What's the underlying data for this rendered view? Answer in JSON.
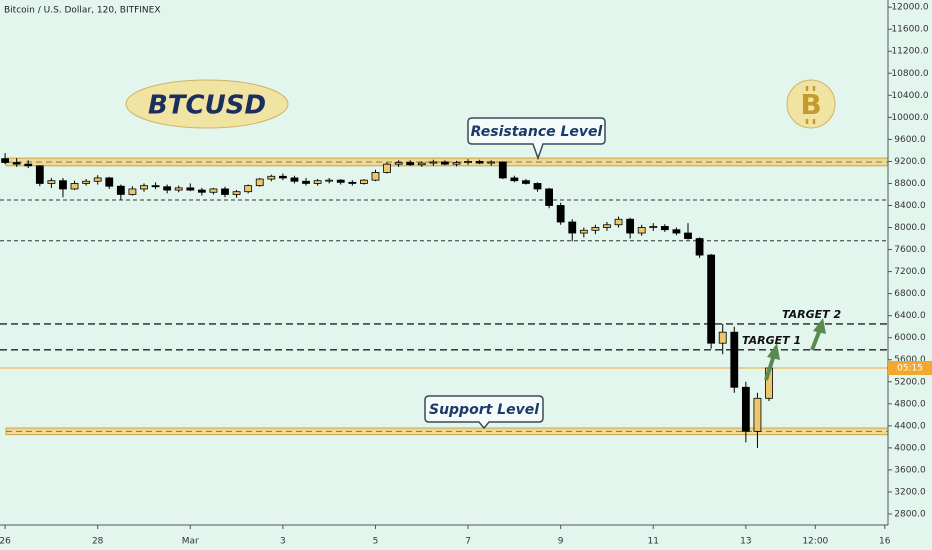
{
  "chart_data": {
    "type": "candlestick",
    "title": "Bitcoin / U.S. Dollar, 120, BITFINEX",
    "x": [
      0,
      0.25,
      0.5,
      0.75,
      1,
      1.25,
      1.5,
      1.75,
      2,
      2.25,
      2.5,
      2.75,
      3,
      3.25,
      3.5,
      3.75,
      4,
      4.25,
      4.5,
      4.75,
      5,
      5.25,
      5.5,
      5.75,
      6,
      6.25,
      6.5,
      6.75,
      7,
      7.25,
      7.5,
      7.75,
      8,
      8.25,
      8.5,
      8.75,
      9,
      9.25,
      9.5,
      9.75,
      10,
      10.25,
      10.5,
      10.75,
      11,
      11.25,
      11.5,
      11.75,
      12,
      12.25,
      12.5,
      12.75,
      13,
      13.25,
      13.5,
      13.75,
      14,
      14.25,
      14.5,
      14.75,
      15,
      15.25,
      15.5,
      15.75,
      16,
      16.25,
      16.5
    ],
    "open": [
      9250,
      9180,
      9150,
      9120,
      8800,
      8850,
      8700,
      8800,
      8840,
      8900,
      8750,
      8600,
      8700,
      8760,
      8740,
      8680,
      8720,
      8680,
      8640,
      8700,
      8600,
      8650,
      8760,
      8880,
      8930,
      8900,
      8840,
      8800,
      8850,
      8860,
      8820,
      8800,
      8860,
      9000,
      9150,
      9180,
      9140,
      9170,
      9190,
      9150,
      9180,
      9200,
      9170,
      9190,
      8900,
      8850,
      8800,
      8700,
      8400,
      8100,
      7900,
      7950,
      8000,
      8050,
      8150,
      7900,
      8000,
      8020,
      7960,
      7900,
      7800,
      7500,
      5900,
      6100,
      5100,
      4300,
      4900
    ],
    "high": [
      9350,
      9260,
      9220,
      9130,
      8900,
      8900,
      8850,
      8880,
      8950,
      8920,
      8780,
      8750,
      8800,
      8820,
      8780,
      8760,
      8800,
      8720,
      8720,
      8740,
      8680,
      8780,
      8900,
      8960,
      8980,
      8940,
      8900,
      8880,
      8900,
      8880,
      8860,
      8880,
      9050,
      9180,
      9220,
      9220,
      9200,
      9230,
      9220,
      9210,
      9240,
      9230,
      9220,
      9200,
      8940,
      8880,
      8820,
      8720,
      8450,
      8150,
      8000,
      8050,
      8100,
      8200,
      8180,
      8050,
      8080,
      8060,
      8000,
      8080,
      7820,
      7520,
      6250,
      6200,
      5200,
      5000,
      5400
    ],
    "low": [
      9150,
      9100,
      9080,
      8750,
      8720,
      8550,
      8680,
      8760,
      8780,
      8700,
      8500,
      8580,
      8650,
      8700,
      8620,
      8640,
      8660,
      8580,
      8600,
      8550,
      8540,
      8620,
      8740,
      8840,
      8860,
      8800,
      8760,
      8760,
      8800,
      8780,
      8760,
      8780,
      8840,
      8980,
      9100,
      9120,
      9100,
      9120,
      9130,
      9110,
      9140,
      9150,
      9120,
      8880,
      8820,
      8780,
      8650,
      8350,
      8050,
      7750,
      7820,
      7880,
      7940,
      8000,
      7800,
      7850,
      7940,
      7920,
      7860,
      7780,
      7450,
      5800,
      5700,
      5000,
      4100,
      4000,
      4850
    ],
    "close": [
      9180,
      9150,
      9120,
      8800,
      8850,
      8700,
      8800,
      8840,
      8900,
      8750,
      8600,
      8700,
      8760,
      8740,
      8680,
      8720,
      8680,
      8640,
      8700,
      8600,
      8650,
      8760,
      8880,
      8930,
      8900,
      8840,
      8800,
      8850,
      8860,
      8820,
      8800,
      8860,
      9000,
      9150,
      9180,
      9140,
      9170,
      9190,
      9150,
      9180,
      9200,
      9170,
      9190,
      8900,
      8850,
      8800,
      8700,
      8400,
      8100,
      7900,
      7950,
      8000,
      8050,
      8150,
      7900,
      8000,
      8020,
      7960,
      7900,
      7800,
      7500,
      5900,
      6100,
      5100,
      4300,
      4900,
      5450
    ],
    "up_color": "#ecc86c",
    "down_color": "#000000",
    "xlim": [
      -0.11,
      19.07
    ],
    "xticks": [
      {
        "value": 0,
        "label": "26"
      },
      {
        "value": 2,
        "label": "28"
      },
      {
        "value": 4,
        "label": "Mar"
      },
      {
        "value": 6,
        "label": "3"
      },
      {
        "value": 8,
        "label": "5"
      },
      {
        "value": 10,
        "label": "7"
      },
      {
        "value": 12,
        "label": "9"
      },
      {
        "value": 14,
        "label": "11"
      },
      {
        "value": 16,
        "label": "13"
      },
      {
        "value": 17.5,
        "label": "12:00"
      },
      {
        "value": 19,
        "label": "16"
      }
    ],
    "ylim": [
      2600,
      12130
    ],
    "yticks": [
      {
        "value": 12000,
        "label": "12000.0"
      },
      {
        "value": 11600,
        "label": "11600.0"
      },
      {
        "value": 11200,
        "label": "11200.0"
      },
      {
        "value": 10800,
        "label": "10800.0"
      },
      {
        "value": 10400,
        "label": "10400.0"
      },
      {
        "value": 10000,
        "label": "10000.0"
      },
      {
        "value": 9600,
        "label": "9600.0"
      },
      {
        "value": 9200,
        "label": "9200.0"
      },
      {
        "value": 8800,
        "label": "8800.0"
      },
      {
        "value": 8400,
        "label": "8400.0"
      },
      {
        "value": 8000,
        "label": "8000.0"
      },
      {
        "value": 7600,
        "label": "7600.0"
      },
      {
        "value": 7200,
        "label": "7200.0"
      },
      {
        "value": 6800,
        "label": "6800.0"
      },
      {
        "value": 6400,
        "label": "6400.0"
      },
      {
        "value": 6000,
        "label": "6000.0"
      },
      {
        "value": 5600,
        "label": "5600.0"
      },
      {
        "value": 5200,
        "label": "5200.0"
      },
      {
        "value": 4800,
        "label": "4800.0"
      },
      {
        "value": 4400,
        "label": "4400.0"
      },
      {
        "value": 4000,
        "label": "4000.0"
      },
      {
        "value": 3600,
        "label": "3600.0"
      },
      {
        "value": 3200,
        "label": "3200.0"
      },
      {
        "value": 2800,
        "label": "2800.0"
      }
    ],
    "zones": [
      {
        "name": "Resistance Level",
        "low": 9120,
        "high": 9260
      },
      {
        "name": "Support Level",
        "low": 4240,
        "high": 4360
      }
    ],
    "levels": [
      8500,
      7760
    ],
    "targets": [
      {
        "label": "TARGET 1",
        "value": 5780
      },
      {
        "label": "TARGET 2",
        "value": 6250
      }
    ],
    "last_price": 5450,
    "countdown": "05:15",
    "symbol_badge": "BTCUSD",
    "logo_symbol": "B"
  }
}
